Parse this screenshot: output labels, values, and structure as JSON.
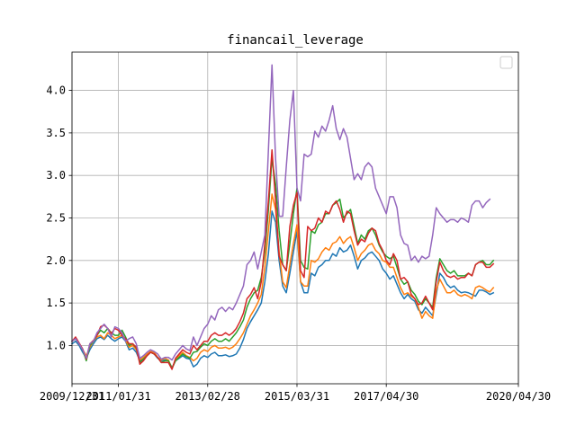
{
  "chart_data": {
    "type": "line",
    "title": "financail_leverage",
    "xlabel": "",
    "ylabel": "",
    "x_tick_labels": [
      "2009/12/31",
      "2011/01/31",
      "2013/02/28",
      "2015/03/31",
      "2017/04/30",
      "2020/04/30"
    ],
    "y_tick_labels": [
      "1.0",
      "1.5",
      "2.0",
      "2.5",
      "3.0",
      "3.5",
      "4.0"
    ],
    "y_ticks": [
      1.0,
      1.5,
      2.0,
      2.5,
      3.0,
      3.5,
      4.0
    ],
    "x_tick_index": [
      0,
      13,
      38,
      63,
      88,
      125
    ],
    "xlim_index": [
      0,
      125
    ],
    "ylim": [
      0.55,
      4.45
    ],
    "grid": true,
    "legend": "top-right (empty)",
    "series": [
      {
        "color": "#1f77b4",
        "values": [
          1.02,
          1.05,
          1.0,
          0.92,
          0.85,
          0.95,
          1.02,
          1.08,
          1.1,
          1.07,
          1.12,
          1.08,
          1.05,
          1.08,
          1.1,
          1.05,
          0.95,
          0.97,
          0.92,
          0.82,
          0.84,
          0.88,
          0.92,
          0.9,
          0.85,
          0.82,
          0.83,
          0.82,
          0.74,
          0.82,
          0.85,
          0.88,
          0.85,
          0.84,
          0.75,
          0.78,
          0.85,
          0.88,
          0.86,
          0.9,
          0.92,
          0.88,
          0.88,
          0.89,
          0.87,
          0.88,
          0.9,
          0.97,
          1.07,
          1.2,
          1.28,
          1.35,
          1.42,
          1.5,
          1.75,
          2.08,
          2.58,
          2.45,
          2.0,
          1.7,
          1.62,
          1.85,
          2.1,
          2.35,
          1.75,
          1.62,
          1.62,
          1.85,
          1.82,
          1.92,
          1.95,
          2.0,
          2.0,
          2.08,
          2.05,
          2.15,
          2.1,
          2.12,
          2.18,
          2.05,
          1.9,
          2.0,
          2.03,
          2.08,
          2.1,
          2.05,
          2.0,
          1.9,
          1.85,
          1.78,
          1.82,
          1.72,
          1.62,
          1.55,
          1.6,
          1.55,
          1.52,
          1.42,
          1.38,
          1.45,
          1.4,
          1.35,
          1.6,
          1.85,
          1.8,
          1.72,
          1.68,
          1.7,
          1.65,
          1.62,
          1.63,
          1.62,
          1.6,
          1.58,
          1.65,
          1.65,
          1.63,
          1.6,
          1.62
        ]
      },
      {
        "color": "#ff7f0e",
        "values": [
          1.05,
          1.08,
          1.02,
          0.95,
          0.88,
          0.98,
          1.05,
          1.1,
          1.12,
          1.08,
          1.15,
          1.12,
          1.08,
          1.1,
          1.12,
          1.06,
          0.98,
          1.0,
          0.95,
          0.83,
          0.86,
          0.9,
          0.93,
          0.92,
          0.86,
          0.83,
          0.85,
          0.83,
          0.73,
          0.83,
          0.88,
          0.92,
          0.88,
          0.86,
          0.82,
          0.85,
          0.92,
          0.95,
          0.93,
          0.98,
          1.0,
          0.97,
          0.97,
          0.98,
          0.96,
          0.98,
          1.02,
          1.08,
          1.15,
          1.25,
          1.35,
          1.42,
          1.5,
          1.6,
          1.92,
          2.35,
          2.78,
          2.6,
          2.1,
          1.75,
          1.68,
          1.95,
          2.2,
          2.42,
          1.75,
          1.7,
          1.7,
          2.0,
          1.98,
          2.02,
          2.1,
          2.15,
          2.12,
          2.2,
          2.22,
          2.28,
          2.2,
          2.25,
          2.28,
          2.15,
          2.0,
          2.08,
          2.12,
          2.18,
          2.2,
          2.12,
          2.08,
          2.0,
          1.98,
          1.92,
          1.92,
          1.8,
          1.68,
          1.6,
          1.62,
          1.58,
          1.55,
          1.45,
          1.32,
          1.4,
          1.35,
          1.32,
          1.65,
          1.78,
          1.7,
          1.62,
          1.62,
          1.65,
          1.6,
          1.58,
          1.6,
          1.58,
          1.55,
          1.68,
          1.7,
          1.68,
          1.65,
          1.63,
          1.68
        ]
      },
      {
        "color": "#2ca02c",
        "values": [
          1.05,
          1.08,
          1.02,
          0.95,
          0.82,
          1.0,
          1.05,
          1.12,
          1.18,
          1.15,
          1.2,
          1.15,
          1.12,
          1.12,
          1.18,
          1.1,
          1.0,
          1.02,
          0.97,
          0.8,
          0.84,
          0.88,
          0.92,
          0.9,
          0.86,
          0.8,
          0.82,
          0.82,
          0.73,
          0.82,
          0.86,
          0.9,
          0.87,
          0.85,
          0.92,
          0.93,
          0.98,
          1.02,
          1.0,
          1.05,
          1.08,
          1.05,
          1.05,
          1.08,
          1.05,
          1.1,
          1.15,
          1.22,
          1.3,
          1.45,
          1.55,
          1.62,
          1.65,
          1.8,
          2.1,
          2.6,
          3.2,
          2.9,
          2.35,
          1.95,
          1.88,
          2.2,
          2.55,
          2.85,
          2.0,
          1.92,
          1.9,
          2.35,
          2.32,
          2.42,
          2.45,
          2.55,
          2.55,
          2.65,
          2.68,
          2.72,
          2.5,
          2.55,
          2.6,
          2.4,
          2.2,
          2.3,
          2.25,
          2.35,
          2.38,
          2.3,
          2.18,
          2.1,
          2.05,
          2.02,
          2.05,
          1.92,
          1.78,
          1.72,
          1.75,
          1.65,
          1.6,
          1.52,
          1.48,
          1.55,
          1.5,
          1.45,
          1.8,
          2.02,
          1.95,
          1.88,
          1.85,
          1.88,
          1.82,
          1.82,
          1.82,
          1.85,
          1.82,
          1.95,
          1.98,
          2.0,
          1.95,
          1.95,
          2.0
        ]
      },
      {
        "color": "#d62728",
        "values": [
          1.05,
          1.1,
          1.03,
          0.96,
          0.84,
          1.02,
          1.06,
          1.12,
          1.22,
          1.24,
          1.2,
          1.14,
          1.2,
          1.18,
          1.12,
          1.08,
          1.02,
          1.02,
          0.98,
          0.78,
          0.82,
          0.88,
          0.92,
          0.9,
          0.86,
          0.8,
          0.8,
          0.8,
          0.72,
          0.85,
          0.9,
          0.95,
          0.92,
          0.9,
          1.0,
          0.95,
          1.0,
          1.05,
          1.05,
          1.12,
          1.15,
          1.12,
          1.12,
          1.15,
          1.12,
          1.15,
          1.2,
          1.28,
          1.38,
          1.55,
          1.6,
          1.68,
          1.55,
          1.75,
          2.2,
          2.7,
          3.3,
          2.7,
          2.05,
          1.95,
          1.88,
          2.4,
          2.65,
          2.8,
          1.88,
          1.8,
          2.4,
          2.35,
          2.38,
          2.5,
          2.45,
          2.58,
          2.55,
          2.65,
          2.7,
          2.6,
          2.45,
          2.58,
          2.55,
          2.35,
          2.18,
          2.25,
          2.22,
          2.32,
          2.38,
          2.35,
          2.2,
          2.12,
          2.0,
          1.95,
          2.08,
          2.0,
          1.78,
          1.8,
          1.75,
          1.6,
          1.55,
          1.48,
          1.5,
          1.58,
          1.5,
          1.42,
          1.75,
          1.98,
          1.88,
          1.82,
          1.8,
          1.82,
          1.78,
          1.8,
          1.8,
          1.85,
          1.82,
          1.95,
          1.98,
          1.98,
          1.92,
          1.92,
          1.96
        ]
      },
      {
        "color": "#9467bd",
        "values": [
          1.05,
          1.08,
          1.02,
          0.95,
          0.85,
          1.02,
          1.05,
          1.15,
          1.2,
          1.25,
          1.2,
          1.1,
          1.22,
          1.2,
          1.15,
          1.05,
          1.08,
          1.1,
          1.02,
          0.85,
          0.88,
          0.92,
          0.95,
          0.93,
          0.9,
          0.84,
          0.86,
          0.86,
          0.83,
          0.9,
          0.95,
          1.0,
          0.96,
          0.94,
          1.1,
          1.0,
          1.1,
          1.2,
          1.25,
          1.35,
          1.3,
          1.42,
          1.45,
          1.4,
          1.45,
          1.42,
          1.5,
          1.6,
          1.7,
          1.95,
          2.0,
          2.1,
          1.9,
          2.1,
          2.3,
          3.3,
          4.3,
          3.2,
          2.52,
          2.52,
          3.1,
          3.65,
          4.0,
          2.85,
          2.7,
          3.25,
          3.22,
          3.25,
          3.52,
          3.45,
          3.58,
          3.52,
          3.65,
          3.82,
          3.55,
          3.42,
          3.55,
          3.45,
          3.2,
          2.95,
          3.02,
          2.95,
          3.1,
          3.15,
          3.1,
          2.85,
          2.75,
          2.65,
          2.55,
          2.75,
          2.75,
          2.62,
          2.3,
          2.2,
          2.18,
          2.0,
          2.05,
          1.98,
          2.05,
          2.02,
          2.05,
          2.3,
          2.62,
          2.55,
          2.5,
          2.45,
          2.48,
          2.48,
          2.45,
          2.5,
          2.48,
          2.45,
          2.65,
          2.7,
          2.7,
          2.62,
          2.68,
          2.72
        ]
      }
    ]
  }
}
